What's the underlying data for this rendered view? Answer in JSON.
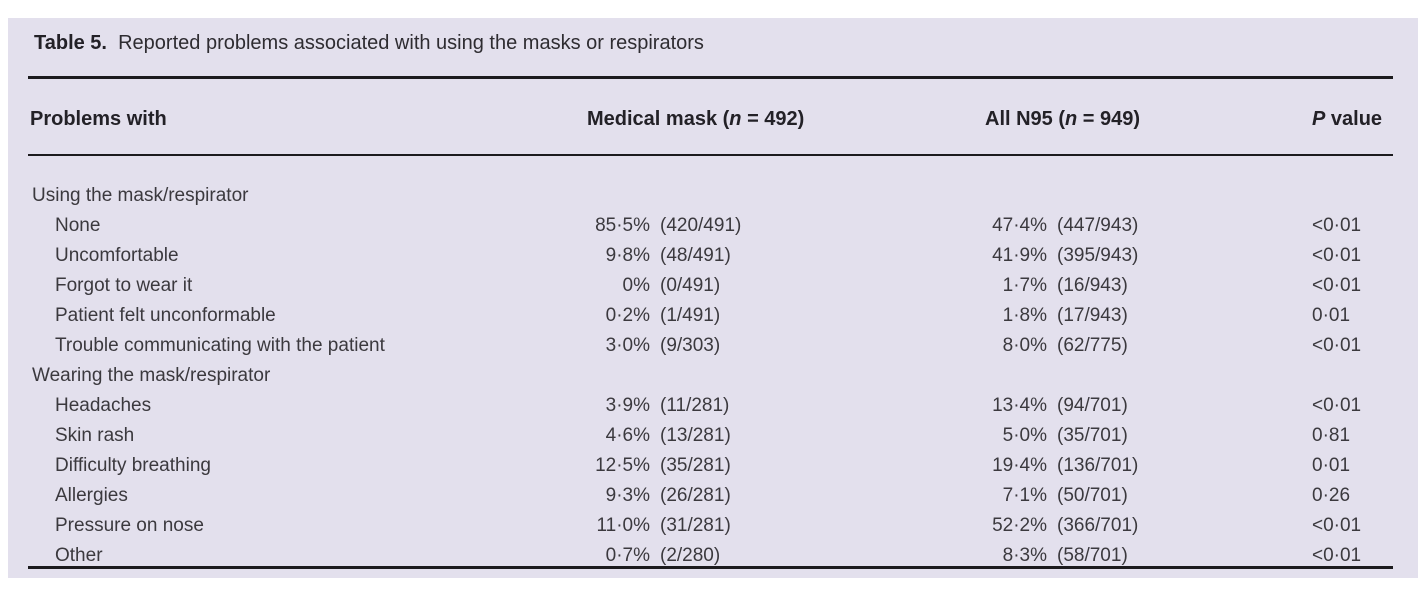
{
  "title": {
    "label": "Table 5.",
    "caption": "  Reported problems associated with using the masks or respirators"
  },
  "columns": {
    "problems": "Problems with",
    "medical_mask": {
      "pre": "Medical mask (",
      "italic": "n",
      "post": " = 492)"
    },
    "n95": {
      "pre": "All N95 (",
      "italic": "n",
      "post": " = 949)"
    },
    "p_value": {
      "italic": "P",
      "post": " value"
    }
  },
  "rows": [
    {
      "label": "Using the mask/respirator",
      "section": true
    },
    {
      "label": "None",
      "mm_pct": "85·5%",
      "mm_frac": "(420/491)",
      "n95_pct": "47·4%",
      "n95_frac": "(447/943)",
      "p": "<0·01"
    },
    {
      "label": "Uncomfortable",
      "mm_pct": "9·8%",
      "mm_frac": "(48/491)",
      "n95_pct": "41·9%",
      "n95_frac": "(395/943)",
      "p": "<0·01"
    },
    {
      "label": "Forgot to wear it",
      "mm_pct": "0%",
      "mm_frac": "(0/491)",
      "n95_pct": "1·7%",
      "n95_frac": "(16/943)",
      "p": "<0·01"
    },
    {
      "label": "Patient felt unconformable",
      "mm_pct": "0·2%",
      "mm_frac": "(1/491)",
      "n95_pct": "1·8%",
      "n95_frac": "(17/943)",
      "p": "0·01"
    },
    {
      "label": "Trouble communicating with the patient",
      "mm_pct": "3·0%",
      "mm_frac": "(9/303)",
      "n95_pct": "8·0%",
      "n95_frac": "(62/775)",
      "p": "<0·01"
    },
    {
      "label": "Wearing the mask/respirator",
      "section": true
    },
    {
      "label": "Headaches",
      "mm_pct": "3·9%",
      "mm_frac": "(11/281)",
      "n95_pct": "13·4%",
      "n95_frac": "(94/701)",
      "p": "<0·01"
    },
    {
      "label": "Skin rash",
      "mm_pct": "4·6%",
      "mm_frac": "(13/281)",
      "n95_pct": "5·0%",
      "n95_frac": "(35/701)",
      "p": "0·81"
    },
    {
      "label": "Difficulty breathing",
      "mm_pct": "12·5%",
      "mm_frac": "(35/281)",
      "n95_pct": "19·4%",
      "n95_frac": "(136/701)",
      "p": "0·01"
    },
    {
      "label": "Allergies",
      "mm_pct": "9·3%",
      "mm_frac": "(26/281)",
      "n95_pct": "7·1%",
      "n95_frac": "(50/701)",
      "p": "0·26"
    },
    {
      "label": "Pressure on nose",
      "mm_pct": "11·0%",
      "mm_frac": "(31/281)",
      "n95_pct": "52·2%",
      "n95_frac": "(366/701)",
      "p": "<0·01"
    },
    {
      "label": "Other",
      "mm_pct": "0·7%",
      "mm_frac": "(2/280)",
      "n95_pct": "8·3%",
      "n95_frac": "(58/701)",
      "p": "<0·01"
    }
  ],
  "colors": {
    "panel_background": "#e3e0ed",
    "rule": "#1c1b1e",
    "body_text": "#3b393e",
    "header_text": "#232127"
  }
}
